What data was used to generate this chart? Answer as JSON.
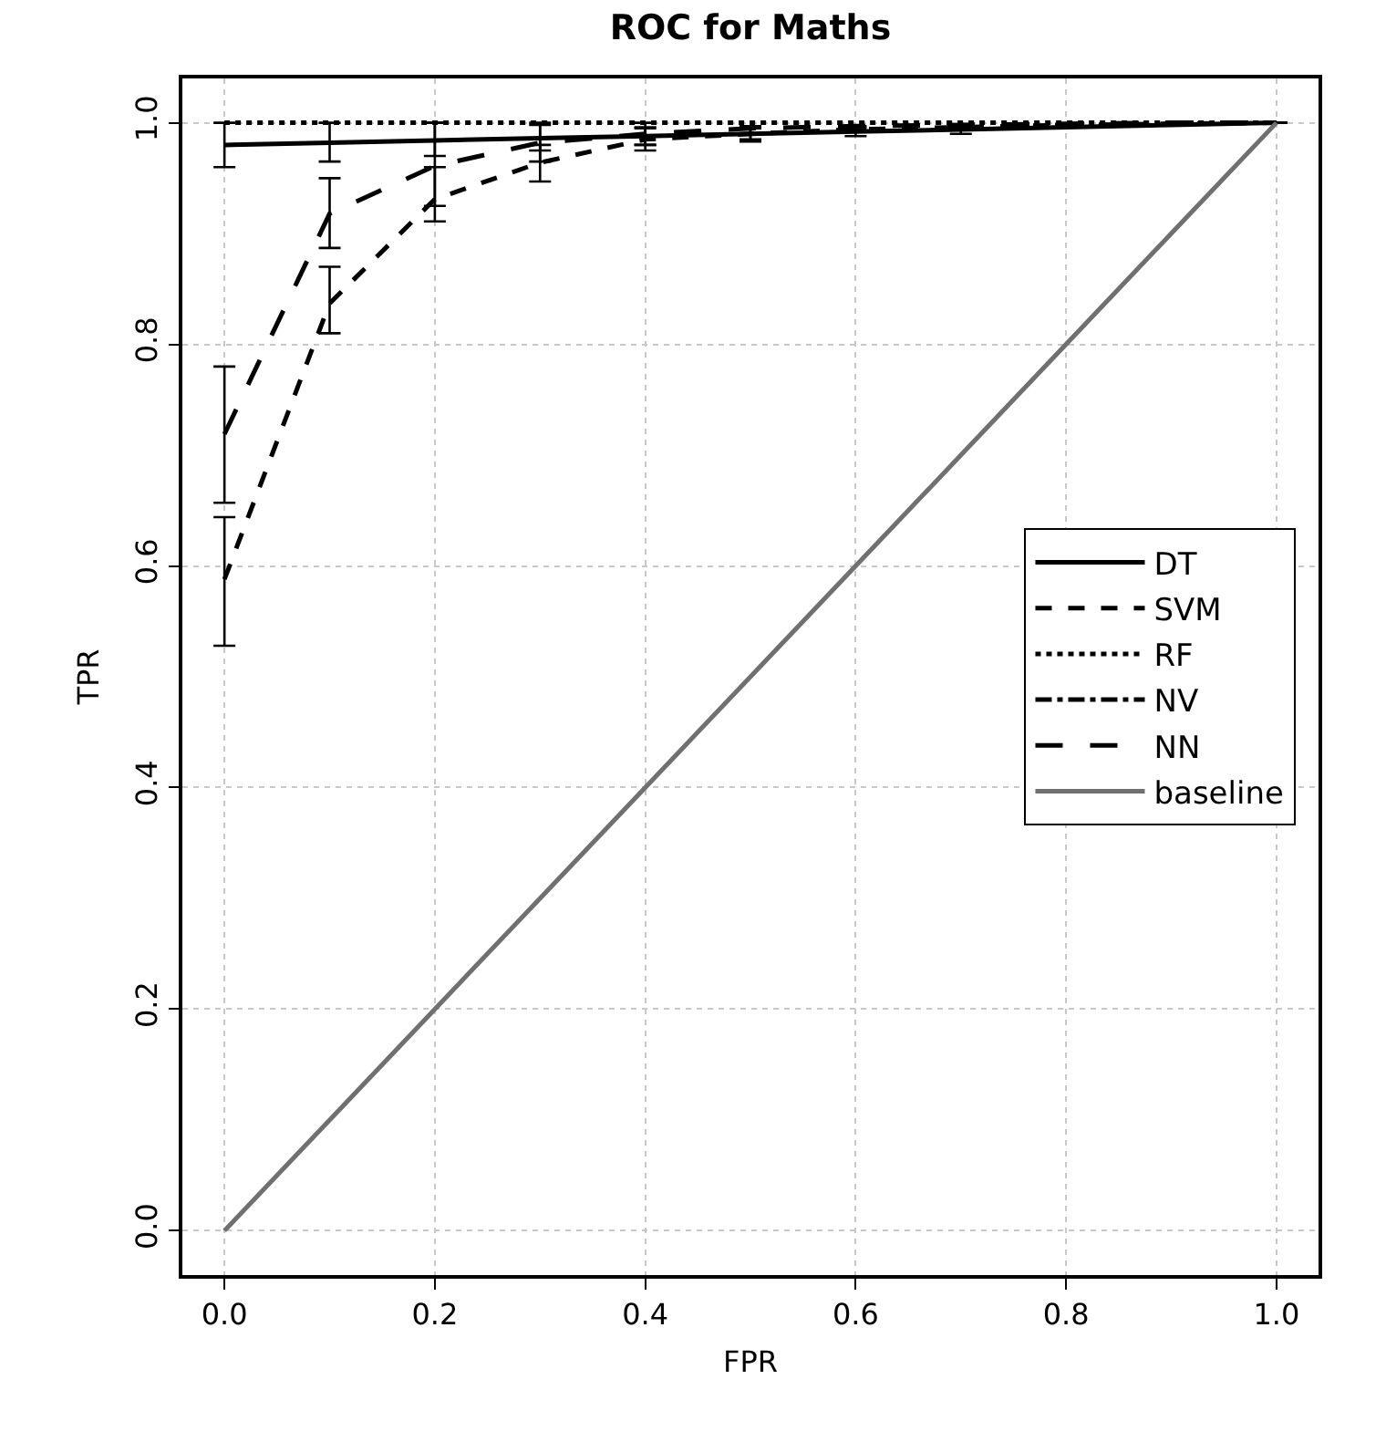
{
  "chart_data": {
    "type": "line",
    "title": "ROC for Maths",
    "xlabel": "FPR",
    "ylabel": "TPR",
    "x": [
      0.0,
      0.1,
      0.2,
      0.3,
      0.4,
      0.5,
      0.6,
      0.7,
      0.8,
      0.9,
      1.0
    ],
    "xlim": [
      -0.04,
      1.04
    ],
    "ylim": [
      -0.04,
      1.04
    ],
    "xticks": [
      {
        "value": 0,
        "label": "0.0"
      },
      0.2,
      0.4,
      0.6,
      0.8,
      {
        "value": 1,
        "label": "1.0"
      }
    ],
    "yticks": [
      {
        "value": 0,
        "label": "0.0"
      },
      0.2,
      0.4,
      0.6,
      0.8,
      {
        "value": 1,
        "label": "1.0"
      }
    ],
    "grid": true,
    "legend": "right",
    "marker": "none",
    "series": [
      {
        "name": "DT",
        "color": "#000000",
        "line_style": "solid",
        "values": [
          0.98,
          0.982,
          0.984,
          0.986,
          0.988,
          0.99,
          0.992,
          0.994,
          0.996,
          0.998,
          1.0
        ],
        "errors": [
          [
            0.96,
            1.0
          ],
          [
            0.965,
            1.0
          ],
          [
            0.97,
            1.0
          ],
          [
            0.975,
            0.998
          ],
          [
            0.98,
            0.996
          ],
          [
            0.985,
            0.995
          ],
          [
            0.988,
            0.996
          ],
          [
            0.99,
            0.998
          ],
          null,
          null,
          null
        ]
      },
      {
        "name": "SVM",
        "color": "#000000",
        "line_style": "dashed",
        "values": [
          0.588,
          0.837,
          0.931,
          0.964,
          0.985,
          0.99,
          0.994,
          0.996,
          0.998,
          0.999,
          1.0
        ],
        "errors": [
          [
            0.528,
            0.644
          ],
          [
            0.81,
            0.87
          ],
          [
            0.911,
            0.96
          ],
          [
            0.947,
            0.98
          ],
          [
            0.975,
            0.995
          ],
          [
            0.983,
            0.997
          ],
          null,
          null,
          null,
          null,
          null
        ]
      },
      {
        "name": "RF",
        "color": "#000000",
        "line_style": "dotted",
        "values": [
          1.0,
          1.0,
          1.0,
          1.0,
          1.0,
          1.0,
          1.0,
          1.0,
          1.0,
          1.0,
          1.0
        ]
      },
      {
        "name": "NV",
        "color": "#000000",
        "line_style": "dashdot",
        "values": [
          null,
          null,
          null,
          null,
          null,
          null,
          null,
          null,
          null,
          null,
          null
        ]
      },
      {
        "name": "NN",
        "color": "#000000",
        "line_style": "longdash",
        "values": [
          0.719,
          0.918,
          0.961,
          0.982,
          0.99,
          0.995,
          0.997,
          0.998,
          0.999,
          1.0,
          1.0
        ],
        "errors": [
          [
            0.657,
            0.78
          ],
          [
            0.887,
            0.95
          ],
          [
            0.925,
            1.0
          ],
          [
            0.965,
            1.0
          ],
          [
            0.98,
            1.0
          ],
          null,
          null,
          null,
          null,
          null,
          null
        ]
      },
      {
        "name": "baseline",
        "color": "#707070",
        "line_style": "solid",
        "values": [
          0.0,
          0.1,
          0.2,
          0.3,
          0.4,
          0.5,
          0.6,
          0.7,
          0.8,
          0.9,
          1.0
        ]
      }
    ]
  }
}
